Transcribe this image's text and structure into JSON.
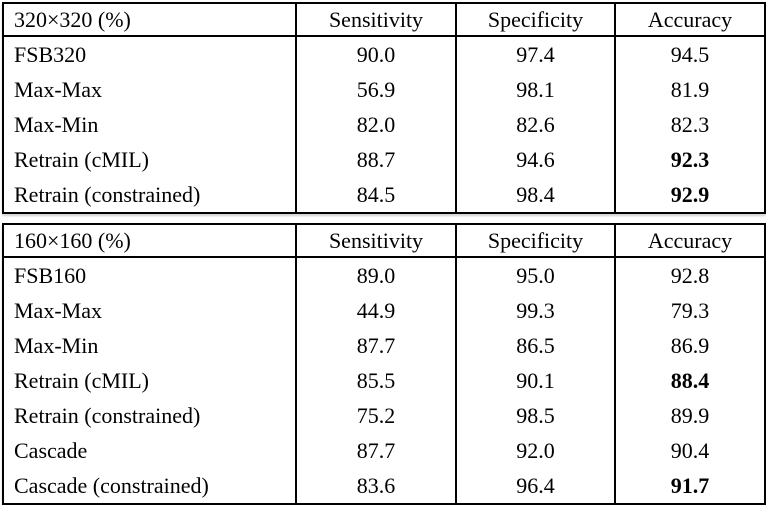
{
  "page": {
    "background_color": "#ffffff",
    "border_color": "#000000",
    "text_color": "#000000"
  },
  "tables": [
    {
      "title": "320×320 (%)",
      "columns": [
        "Sensitivity",
        "Specificity",
        "Accuracy"
      ],
      "rows": [
        {
          "cells": [
            "FSB320",
            "90.0",
            "97.4",
            "94.5"
          ],
          "accuracy_bold": false
        },
        {
          "cells": [
            "Max-Max",
            "56.9",
            "98.1",
            "81.9"
          ],
          "accuracy_bold": false
        },
        {
          "cells": [
            "Max-Min",
            "82.0",
            "82.6",
            "82.3"
          ],
          "accuracy_bold": false
        },
        {
          "cells": [
            "Retrain (cMIL)",
            "88.7",
            "94.6",
            "92.3"
          ],
          "accuracy_bold": true
        },
        {
          "cells": [
            "Retrain (constrained)",
            "84.5",
            "98.4",
            "92.9"
          ],
          "accuracy_bold": true
        }
      ]
    },
    {
      "title": "160×160 (%)",
      "columns": [
        "Sensitivity",
        "Specificity",
        "Accuracy"
      ],
      "rows": [
        {
          "cells": [
            "FSB160",
            "89.0",
            "95.0",
            "92.8"
          ],
          "accuracy_bold": false
        },
        {
          "cells": [
            "Max-Max",
            "44.9",
            "99.3",
            "79.3"
          ],
          "accuracy_bold": false
        },
        {
          "cells": [
            "Max-Min",
            "87.7",
            "86.5",
            "86.9"
          ],
          "accuracy_bold": false
        },
        {
          "cells": [
            "Retrain (cMIL)",
            "85.5",
            "90.1",
            "88.4"
          ],
          "accuracy_bold": true
        },
        {
          "cells": [
            "Retrain (constrained)",
            "75.2",
            "98.5",
            "89.9"
          ],
          "accuracy_bold": false
        },
        {
          "cells": [
            "Cascade",
            "87.7",
            "92.0",
            "90.4"
          ],
          "accuracy_bold": false
        },
        {
          "cells": [
            "Cascade (constrained)",
            "83.6",
            "96.4",
            "91.7"
          ],
          "accuracy_bold": true
        }
      ]
    }
  ]
}
